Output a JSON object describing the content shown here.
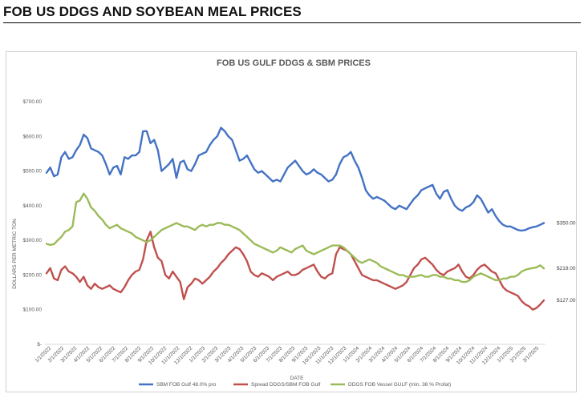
{
  "page_title": "FOB US DDGS AND SOYBEAN MEAL PRICES",
  "chart_data": {
    "type": "line",
    "title": "FOB US GULF DDGS & SBM PRICES",
    "xlabel": "DATE",
    "ylabel": "DOLLARS PER METRIC TON",
    "ylim": [
      0,
      700
    ],
    "y_ticks": [
      0,
      100,
      200,
      300,
      400,
      500,
      600,
      700
    ],
    "y_tick_labels": [
      "$-",
      "$100.00",
      "$200.00",
      "$300.00",
      "$400.00",
      "$500.00",
      "$600.00",
      "$700.00"
    ],
    "grid": false,
    "legend_position": "bottom",
    "x_tick_labels": [
      "1/1/2022",
      "2/1/2022",
      "3/1/2022",
      "4/1/2022",
      "5/1/2022",
      "6/1/2022",
      "7/1/2022",
      "8/1/2022",
      "9/1/2022",
      "10/1/2022",
      "11/1/2022",
      "12/1/2022",
      "1/1/2023",
      "2/1/2023",
      "3/1/2023",
      "4/1/2023",
      "5/1/2023",
      "6/1/2023",
      "7/1/2023",
      "8/1/2023",
      "9/1/2023",
      "10/1/2023",
      "11/1/2023",
      "12/1/2023",
      "1/1/2024",
      "2/1/2024",
      "3/1/2024",
      "4/1/2024",
      "5/1/2024",
      "6/1/2024",
      "7/1/2024",
      "8/1/2024",
      "9/1/2024",
      "10/1/2024",
      "11/1/2024",
      "12/1/2024",
      "1/1/2025",
      "2/1/2025",
      "3/1/2025"
    ],
    "series": [
      {
        "name": "SBM FOB Gulf 48.0% pro",
        "color": "#4472C4",
        "end_label": "$350.00",
        "values": [
          495,
          510,
          485,
          490,
          540,
          555,
          535,
          540,
          560,
          575,
          605,
          595,
          565,
          560,
          555,
          545,
          520,
          490,
          510,
          515,
          490,
          540,
          535,
          545,
          545,
          555,
          615,
          615,
          580,
          590,
          560,
          500,
          510,
          520,
          535,
          480,
          525,
          530,
          505,
          500,
          520,
          545,
          550,
          555,
          575,
          590,
          600,
          625,
          615,
          600,
          590,
          560,
          530,
          535,
          545,
          525,
          505,
          495,
          500,
          490,
          480,
          470,
          475,
          470,
          490,
          510,
          520,
          530,
          515,
          500,
          490,
          495,
          505,
          495,
          490,
          480,
          470,
          475,
          490,
          520,
          540,
          545,
          555,
          530,
          510,
          480,
          445,
          430,
          420,
          425,
          420,
          415,
          405,
          395,
          390,
          400,
          395,
          390,
          405,
          420,
          430,
          445,
          450,
          455,
          460,
          435,
          420,
          440,
          445,
          420,
          400,
          390,
          385,
          395,
          400,
          410,
          430,
          420,
          400,
          380,
          390,
          370,
          355,
          345,
          340,
          340,
          335,
          330,
          328,
          330,
          335,
          338,
          340,
          345,
          350
        ]
      },
      {
        "name": "Spread DDGS/SBM FOB Gulf",
        "color": "#C0504D",
        "end_label": "$127.00",
        "values": [
          205,
          220,
          190,
          185,
          215,
          225,
          210,
          205,
          195,
          180,
          195,
          170,
          160,
          175,
          165,
          160,
          165,
          170,
          160,
          155,
          150,
          165,
          185,
          200,
          210,
          215,
          245,
          300,
          325,
          280,
          250,
          240,
          200,
          190,
          210,
          195,
          180,
          130,
          165,
          175,
          190,
          185,
          175,
          185,
          195,
          210,
          220,
          235,
          245,
          260,
          270,
          280,
          275,
          260,
          240,
          210,
          200,
          195,
          205,
          200,
          195,
          185,
          195,
          200,
          205,
          210,
          200,
          200,
          205,
          215,
          220,
          225,
          230,
          210,
          195,
          190,
          200,
          205,
          260,
          280,
          275,
          270,
          260,
          240,
          220,
          200,
          195,
          190,
          185,
          185,
          180,
          175,
          170,
          165,
          160,
          165,
          170,
          180,
          200,
          220,
          230,
          245,
          250,
          240,
          230,
          215,
          205,
          200,
          210,
          215,
          220,
          230,
          210,
          195,
          190,
          200,
          215,
          225,
          230,
          220,
          210,
          205,
          185,
          165,
          155,
          150,
          145,
          140,
          125,
          115,
          110,
          100,
          105,
          115,
          127
        ]
      },
      {
        "name": "DDGS FOB Vessel GULF  (min. 36 % Profat)",
        "color": "#9BBB59",
        "end_label": "$219.00",
        "values": [
          290,
          287,
          289,
          300,
          310,
          325,
          330,
          340,
          410,
          415,
          435,
          420,
          395,
          385,
          370,
          360,
          345,
          335,
          340,
          345,
          335,
          330,
          325,
          320,
          310,
          305,
          300,
          295,
          300,
          310,
          320,
          330,
          335,
          340,
          345,
          350,
          345,
          340,
          340,
          335,
          330,
          340,
          345,
          340,
          345,
          345,
          350,
          350,
          345,
          345,
          340,
          335,
          330,
          320,
          310,
          300,
          290,
          285,
          280,
          275,
          270,
          265,
          270,
          280,
          275,
          270,
          265,
          275,
          280,
          285,
          270,
          265,
          260,
          265,
          270,
          275,
          280,
          285,
          285,
          285,
          280,
          270,
          260,
          250,
          240,
          235,
          240,
          245,
          240,
          235,
          225,
          220,
          215,
          210,
          205,
          200,
          200,
          195,
          195,
          195,
          198,
          200,
          195,
          195,
          200,
          200,
          195,
          195,
          190,
          190,
          185,
          185,
          180,
          180,
          185,
          195,
          200,
          205,
          200,
          195,
          190,
          185,
          185,
          190,
          190,
          195,
          195,
          200,
          210,
          215,
          218,
          220,
          222,
          228,
          219
        ]
      }
    ]
  }
}
